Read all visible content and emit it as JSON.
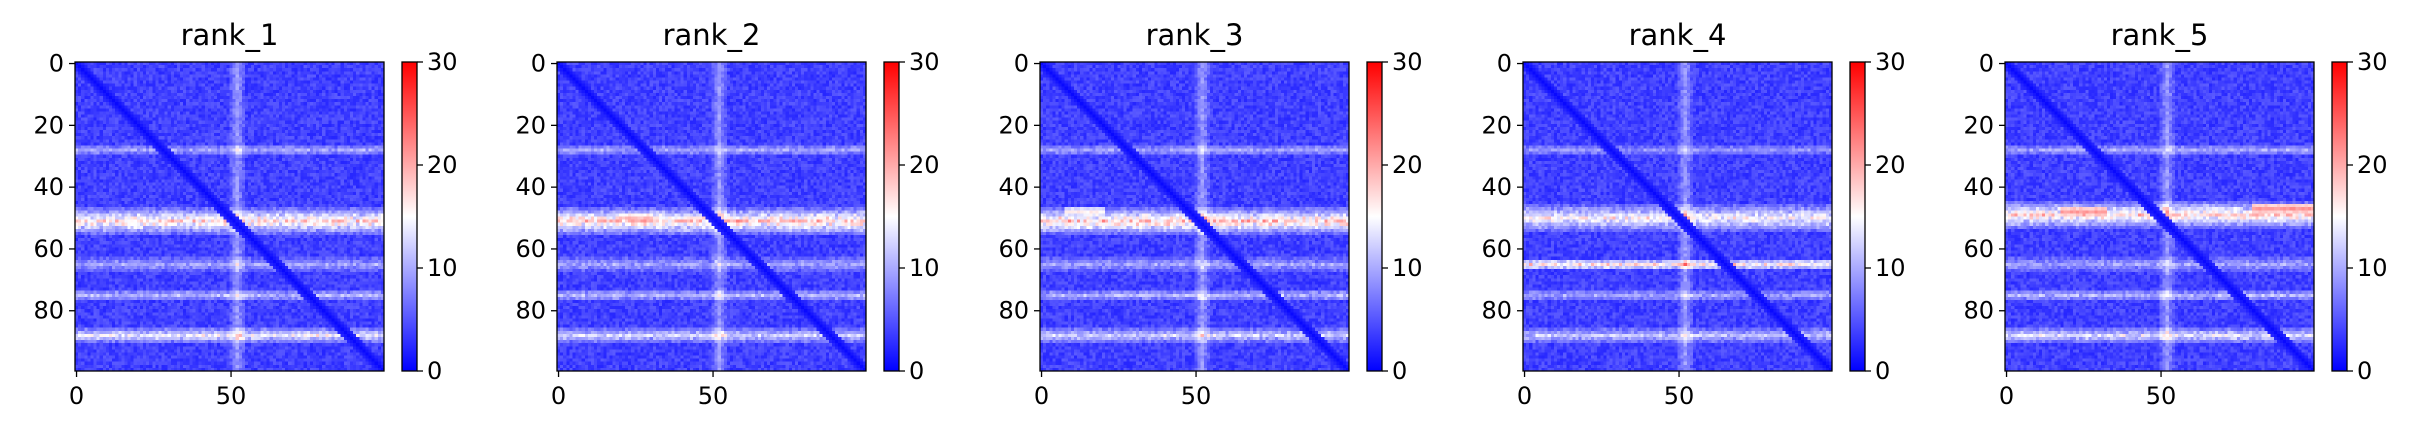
{
  "colormap": {
    "name": "bwr",
    "low": "#0000ff",
    "mid": "#ffffff",
    "high": "#ff0000"
  },
  "chart_data": [
    {
      "type": "heatmap",
      "title": "rank_1",
      "size": 100,
      "xticks": [
        0,
        50
      ],
      "yticks": [
        0,
        20,
        40,
        60,
        80
      ],
      "vmin": 0,
      "vmax": 30,
      "cbar_ticks": [
        0,
        10,
        20,
        30
      ],
      "xlim": [
        0,
        99
      ],
      "ylim": [
        99,
        0
      ],
      "grid": false,
      "high_rows": [
        {
          "center": 51,
          "width": 4,
          "value": 14
        },
        {
          "center": 88,
          "width": 2,
          "value": 11
        },
        {
          "center": 28,
          "width": 1.5,
          "value": 6
        },
        {
          "center": 65,
          "width": 2,
          "value": 6
        },
        {
          "center": 75,
          "width": 1.5,
          "value": 7
        }
      ],
      "high_cols": [
        {
          "center": 52,
          "width": 2,
          "value": 5
        }
      ],
      "hotspots": []
    },
    {
      "type": "heatmap",
      "title": "rank_2",
      "size": 100,
      "xticks": [
        0,
        50
      ],
      "yticks": [
        0,
        20,
        40,
        60,
        80
      ],
      "vmin": 0,
      "vmax": 30,
      "cbar_ticks": [
        0,
        10,
        20,
        30
      ],
      "xlim": [
        0,
        99
      ],
      "ylim": [
        99,
        0
      ],
      "grid": false,
      "high_rows": [
        {
          "center": 51,
          "width": 4,
          "value": 15
        },
        {
          "center": 88,
          "width": 2,
          "value": 9
        },
        {
          "center": 28,
          "width": 1.5,
          "value": 6
        },
        {
          "center": 65,
          "width": 2,
          "value": 6
        },
        {
          "center": 75,
          "width": 1.5,
          "value": 7
        }
      ],
      "high_cols": [
        {
          "center": 52,
          "width": 2,
          "value": 5
        }
      ],
      "hotspots": [
        {
          "row": 50,
          "col_start": 20,
          "col_end": 30,
          "value": 20
        }
      ]
    },
    {
      "type": "heatmap",
      "title": "rank_3",
      "size": 100,
      "xticks": [
        0,
        50
      ],
      "yticks": [
        0,
        20,
        40,
        60,
        80
      ],
      "vmin": 0,
      "vmax": 30,
      "cbar_ticks": [
        0,
        10,
        20,
        30
      ],
      "xlim": [
        0,
        99
      ],
      "ylim": [
        99,
        0
      ],
      "grid": false,
      "high_rows": [
        {
          "center": 51,
          "width": 4,
          "value": 15
        },
        {
          "center": 88,
          "width": 2,
          "value": 9
        },
        {
          "center": 28,
          "width": 1.5,
          "value": 6
        },
        {
          "center": 65,
          "width": 2,
          "value": 6
        },
        {
          "center": 75,
          "width": 1.5,
          "value": 7
        }
      ],
      "high_cols": [
        {
          "center": 52,
          "width": 2,
          "value": 5
        }
      ],
      "hotspots": [
        {
          "row": 48,
          "col_start": 8,
          "col_end": 20,
          "value": 17
        }
      ]
    },
    {
      "type": "heatmap",
      "title": "rank_4",
      "size": 100,
      "xticks": [
        0,
        50
      ],
      "yticks": [
        0,
        20,
        40,
        60,
        80
      ],
      "vmin": 0,
      "vmax": 30,
      "cbar_ticks": [
        0,
        10,
        20,
        30
      ],
      "xlim": [
        0,
        99
      ],
      "ylim": [
        99,
        0
      ],
      "grid": false,
      "high_rows": [
        {
          "center": 50,
          "width": 4,
          "value": 12
        },
        {
          "center": 65,
          "width": 1.5,
          "value": 13
        },
        {
          "center": 88,
          "width": 2,
          "value": 8
        },
        {
          "center": 28,
          "width": 1.5,
          "value": 5
        },
        {
          "center": 75,
          "width": 1.5,
          "value": 6
        }
      ],
      "high_cols": [
        {
          "center": 52,
          "width": 2,
          "value": 5
        }
      ],
      "hotspots": []
    },
    {
      "type": "heatmap",
      "title": "rank_5",
      "size": 100,
      "xticks": [
        0,
        50
      ],
      "yticks": [
        0,
        20,
        40,
        60,
        80
      ],
      "vmin": 0,
      "vmax": 30,
      "cbar_ticks": [
        0,
        10,
        20,
        30
      ],
      "xlim": [
        0,
        99
      ],
      "ylim": [
        99,
        0
      ],
      "grid": false,
      "high_rows": [
        {
          "center": 49,
          "width": 4,
          "value": 14
        },
        {
          "center": 88,
          "width": 2,
          "value": 10
        },
        {
          "center": 28,
          "width": 1.5,
          "value": 6
        },
        {
          "center": 65,
          "width": 2,
          "value": 6
        },
        {
          "center": 75,
          "width": 1.5,
          "value": 7
        }
      ],
      "high_cols": [
        {
          "center": 52,
          "width": 2,
          "value": 5
        }
      ],
      "hotspots": [
        {
          "row": 48,
          "col_start": 18,
          "col_end": 32,
          "value": 22
        },
        {
          "row": 47,
          "col_start": 80,
          "col_end": 99,
          "value": 22
        }
      ]
    }
  ]
}
